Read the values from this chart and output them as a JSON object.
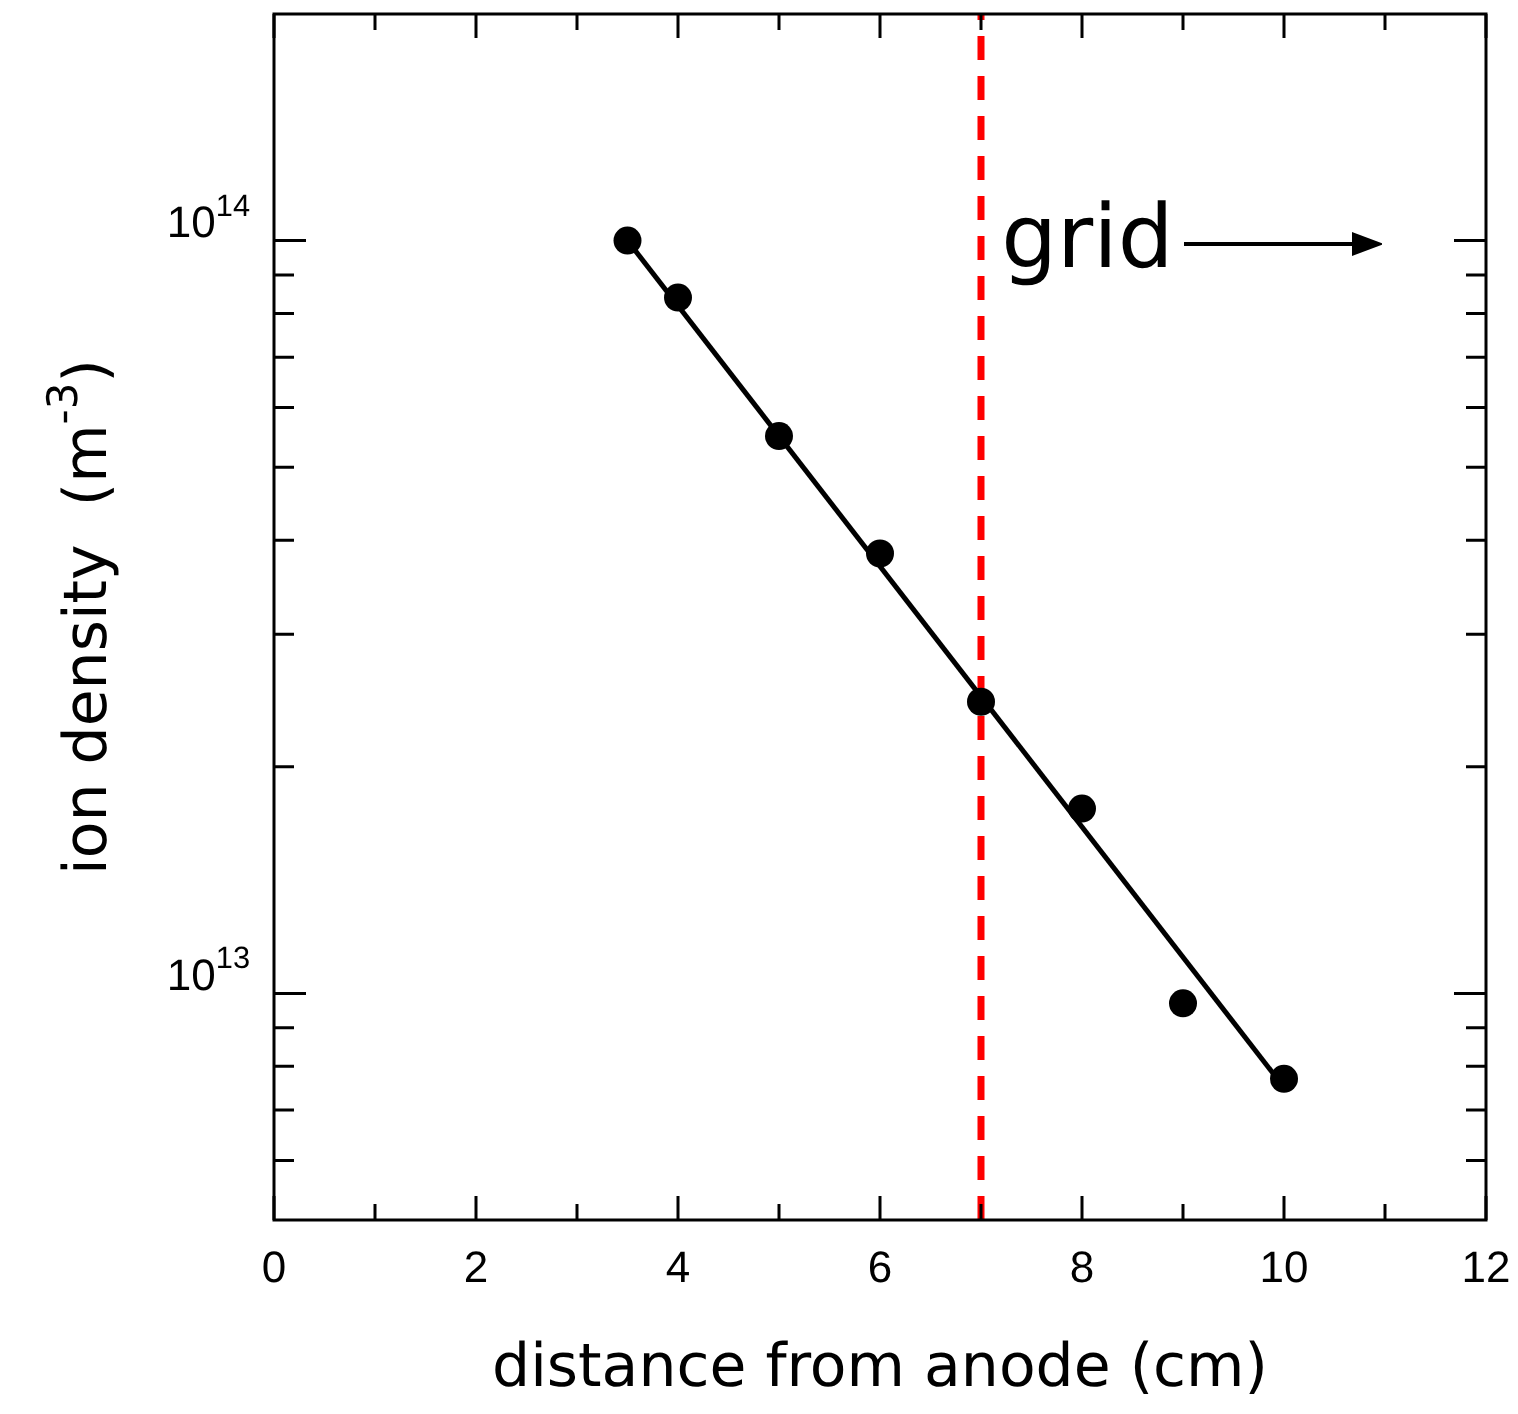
{
  "chart_data": {
    "type": "scatter",
    "xlabel": "distance from anode (cm)",
    "ylabel": "ion density  (m$^{-3}$)",
    "log": "y",
    "xlim": [
      0,
      12
    ],
    "ylim": [
      5000000000000.0,
      200000000000000.0
    ],
    "xticks": [
      0,
      {
        "value": 1,
        "label": null
      },
      2,
      {
        "value": 3,
        "label": null
      },
      4,
      {
        "value": 5,
        "label": null
      },
      6,
      {
        "value": 7,
        "label": null
      },
      8,
      {
        "value": 9,
        "label": null
      },
      10,
      {
        "value": 11,
        "label": null
      },
      12
    ],
    "yticks": [
      {
        "value": 6000000000000.0,
        "label": null
      },
      {
        "value": 7000000000000.0,
        "label": null
      },
      {
        "value": 8000000000000.0,
        "label": null
      },
      {
        "value": 9000000000000.0,
        "label": null
      },
      {
        "value": 10000000000000.0,
        "label": "10$^{13}$"
      },
      {
        "value": 20000000000000.0,
        "label": null
      },
      {
        "value": 30000000000000.0,
        "label": null
      },
      {
        "value": 40000000000000.0,
        "label": null
      },
      {
        "value": 50000000000000.0,
        "label": null
      },
      {
        "value": 60000000000000.0,
        "label": null
      },
      {
        "value": 70000000000000.0,
        "label": null
      },
      {
        "value": 80000000000000.0,
        "label": null
      },
      {
        "value": 90000000000000.0,
        "label": null
      },
      {
        "value": 100000000000000.0,
        "label": "10$^{14}$"
      }
    ],
    "series": [
      {
        "type": "scatter",
        "color": "#000000",
        "marker": "circle",
        "x": [
          3.5,
          4,
          5,
          6,
          7,
          8,
          9,
          10
        ],
        "values": [
          100000000000000.0,
          84000000000000.0,
          55000000000000.0,
          38400000000000.0,
          24400000000000.0,
          17600000000000.0,
          9700000000000.0,
          7700000000000.0
        ]
      },
      {
        "type": "line",
        "color": "#000000",
        "marker": "none",
        "line_style": "solid",
        "x": [
          3.5,
          10
        ],
        "values": [
          100000000000000.0,
          7500000000000.0
        ]
      }
    ],
    "ref_lines": [
      {
        "axis": "x",
        "value": 7,
        "color": "#ff0000",
        "line_style": "dashed"
      }
    ],
    "annotations": [
      "grid"
    ],
    "grid": false,
    "legend": false
  }
}
